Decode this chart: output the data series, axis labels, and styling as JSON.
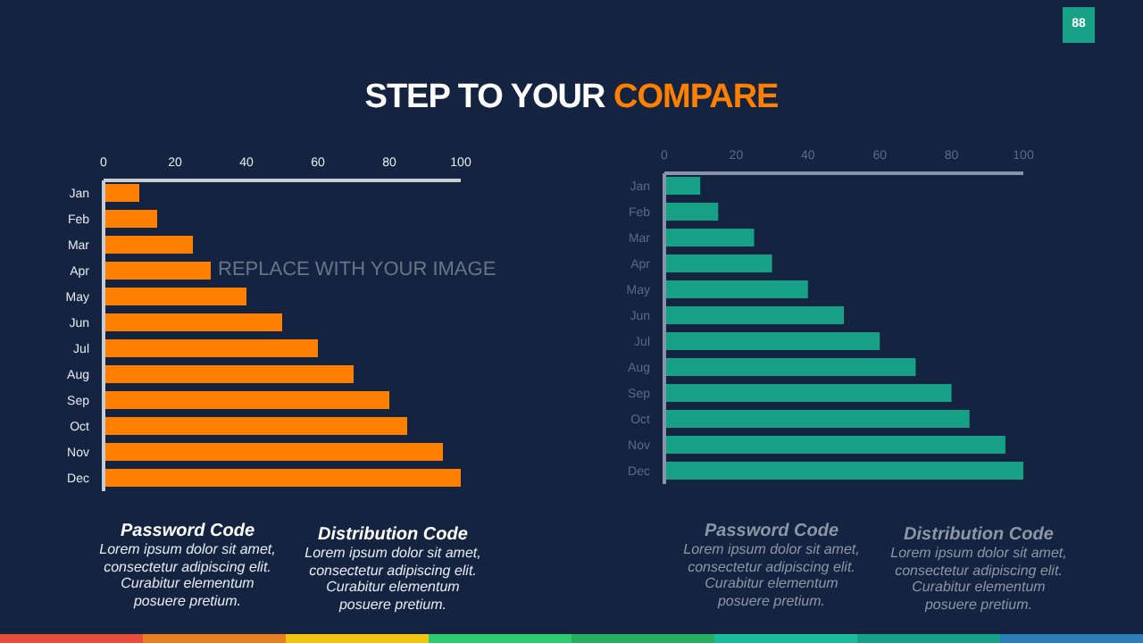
{
  "chart_data": [
    {
      "type": "bar",
      "orientation": "horizontal",
      "title": "STEP TO YOUR COMPARE",
      "categories": [
        "Jan",
        "Feb",
        "Mar",
        "Apr",
        "May",
        "Jun",
        "Jul",
        "Aug",
        "Sep",
        "Oct",
        "Nov",
        "Dec"
      ],
      "values": [
        10,
        15,
        25,
        30,
        40,
        50,
        60,
        70,
        80,
        85,
        95,
        100
      ],
      "color": "#ff8000",
      "xlim": [
        0,
        100
      ],
      "xticks": [
        0,
        20,
        40,
        60,
        80,
        100
      ],
      "grid": false,
      "legend": false,
      "annotations": [
        "REPLACE WITH YOUR IMAGE",
        "Password  Code",
        "Lorem ipsum dolor sit amet, consectetur adipiscing elit. Curabitur elementum posuere pretium.",
        "Distribution Code",
        "Lorem ipsum dolor sit amet, consectetur adipiscing elit. Curabitur elementum posuere pretium."
      ]
    },
    {
      "type": "bar",
      "orientation": "horizontal",
      "categories": [
        "Jan",
        "Feb",
        "Mar",
        "Apr",
        "May",
        "Jun",
        "Jul",
        "Aug",
        "Sep",
        "Oct",
        "Nov",
        "Dec"
      ],
      "values": [
        10,
        15,
        25,
        30,
        40,
        50,
        60,
        70,
        80,
        85,
        95,
        100
      ],
      "color": "#16a085",
      "xlim": [
        0,
        100
      ],
      "xticks": [
        0,
        20,
        40,
        60,
        80,
        100
      ],
      "grid": false,
      "legend": false,
      "annotations": [
        "Password  Code",
        "Lorem ipsum dolor sit amet, consectetur adipiscing elit. Curabitur elementum posuere pretium.",
        "Distribution Code",
        "Lorem ipsum dolor sit amet, consectetur adipiscing elit. Curabitur elementum posuere pretium.",
        "88"
      ]
    }
  ]
}
